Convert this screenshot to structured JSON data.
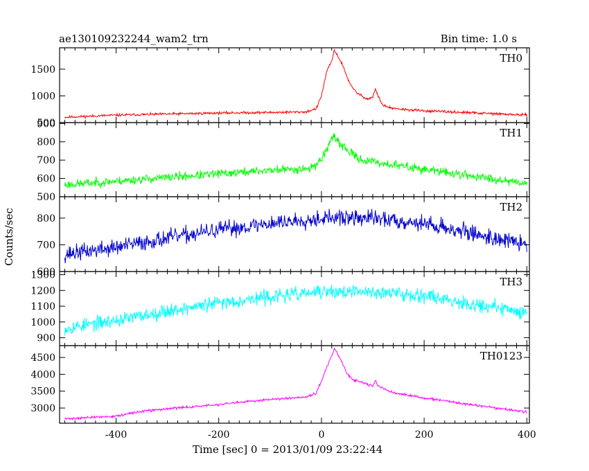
{
  "header": {
    "title": "ae130109232244_wam2_trn",
    "bin_time": "Bin time: 1.0 s"
  },
  "axes": {
    "xlabel": "Time [sec] 0 = 2013/01/09 23:22:44",
    "ylabel": "Counts/sec"
  },
  "chart_data": [
    {
      "type": "line",
      "name": "TH0",
      "color": "#ff0000",
      "xlim": [
        -510,
        405
      ],
      "ylim": [
        500,
        1900
      ],
      "yticks": [
        500,
        1000,
        1500
      ],
      "xticks": [
        -400,
        -200,
        0,
        200,
        400
      ],
      "noise": 30,
      "seed": 11,
      "x": [
        -500,
        -400,
        -300,
        -200,
        -100,
        -30,
        -10,
        0,
        10,
        20,
        25,
        30,
        40,
        50,
        60,
        70,
        80,
        90,
        100,
        105,
        110,
        120,
        140,
        200,
        300,
        400
      ],
      "y": [
        600,
        640,
        660,
        680,
        690,
        700,
        760,
        1000,
        1450,
        1650,
        1850,
        1780,
        1600,
        1350,
        1150,
        1050,
        990,
        940,
        980,
        1130,
        1000,
        820,
        760,
        720,
        680,
        640
      ]
    },
    {
      "type": "line",
      "name": "TH1",
      "color": "#00ff00",
      "xlim": [
        -510,
        405
      ],
      "ylim": [
        500,
        905
      ],
      "yticks": [
        500,
        600,
        700,
        800,
        900
      ],
      "xticks": [
        -400,
        -200,
        0,
        200,
        400
      ],
      "noise": 30,
      "seed": 23,
      "x": [
        -500,
        -400,
        -300,
        -200,
        -100,
        -20,
        0,
        10,
        20,
        30,
        40,
        60,
        80,
        100,
        150,
        200,
        300,
        400
      ],
      "y": [
        565,
        585,
        605,
        625,
        645,
        655,
        705,
        760,
        820,
        810,
        780,
        730,
        700,
        690,
        670,
        650,
        610,
        575
      ]
    },
    {
      "type": "line",
      "name": "TH2",
      "color": "#0000cc",
      "xlim": [
        -510,
        405
      ],
      "ylim": [
        600,
        880
      ],
      "yticks": [
        600,
        700,
        800
      ],
      "xticks": [
        -400,
        -200,
        0,
        200,
        400
      ],
      "noise": 38,
      "seed": 37,
      "x": [
        -500,
        -400,
        -300,
        -200,
        -100,
        0,
        100,
        200,
        300,
        400
      ],
      "y": [
        665,
        690,
        725,
        755,
        780,
        800,
        800,
        780,
        740,
        700
      ]
    },
    {
      "type": "line",
      "name": "TH3",
      "color": "#00ffff",
      "xlim": [
        -510,
        405
      ],
      "ylim": [
        850,
        1320
      ],
      "yticks": [
        900,
        1000,
        1100,
        1200,
        1300
      ],
      "xticks": [
        -400,
        -200,
        0,
        200,
        400
      ],
      "noise": 55,
      "seed": 53,
      "x": [
        -500,
        -400,
        -300,
        -200,
        -100,
        0,
        100,
        200,
        300,
        400
      ],
      "y": [
        960,
        1010,
        1070,
        1120,
        1160,
        1190,
        1190,
        1170,
        1110,
        1060
      ]
    },
    {
      "type": "line",
      "name": "TH0123",
      "color": "#ff00ff",
      "xlim": [
        -510,
        405
      ],
      "ylim": [
        2550,
        4850
      ],
      "yticks": [
        3000,
        3500,
        4000,
        4500
      ],
      "xticks": [
        -400,
        -200,
        0,
        200,
        400
      ],
      "noise": 45,
      "seed": 71,
      "x": [
        -500,
        -400,
        -350,
        -300,
        -200,
        -100,
        -30,
        -10,
        0,
        10,
        20,
        25,
        30,
        40,
        50,
        60,
        80,
        100,
        105,
        110,
        140,
        200,
        300,
        400
      ],
      "y": [
        2680,
        2760,
        2900,
        2980,
        3100,
        3260,
        3330,
        3450,
        3800,
        4200,
        4550,
        4750,
        4650,
        4350,
        4000,
        3850,
        3750,
        3650,
        3820,
        3650,
        3450,
        3300,
        3080,
        2880
      ]
    }
  ]
}
